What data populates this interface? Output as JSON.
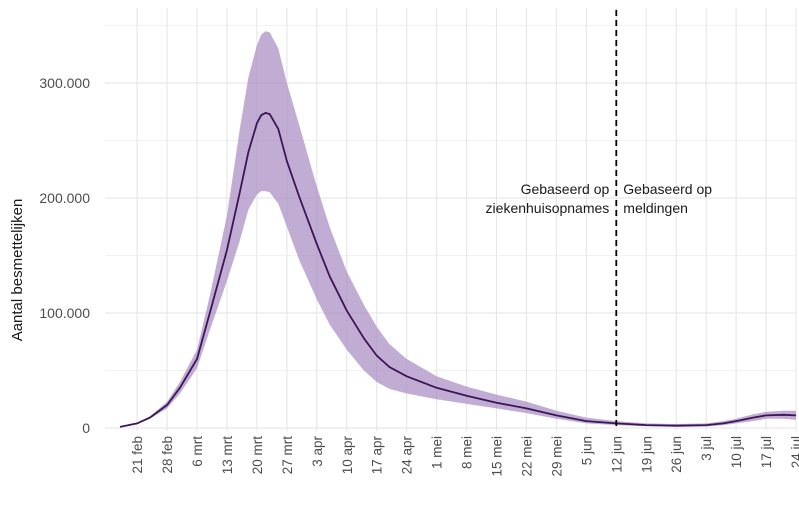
{
  "chart_data": {
    "type": "area",
    "title": "",
    "xlabel": "",
    "ylabel": "Aantal besmettelijken",
    "ylim": [
      0,
      350000
    ],
    "yticks": [
      0,
      100000,
      200000,
      300000
    ],
    "ytick_labels": [
      "0",
      "100.000",
      "200.000",
      "300.000"
    ],
    "grid": true,
    "x_start": "2020-02-17",
    "xlim": [
      "2020-02-17",
      "2020-07-24"
    ],
    "xticks": [
      "2020-02-21",
      "2020-02-28",
      "2020-03-06",
      "2020-03-13",
      "2020-03-20",
      "2020-03-27",
      "2020-04-03",
      "2020-04-10",
      "2020-04-17",
      "2020-04-24",
      "2020-05-01",
      "2020-05-08",
      "2020-05-15",
      "2020-05-22",
      "2020-05-29",
      "2020-06-05",
      "2020-06-12",
      "2020-06-19",
      "2020-06-26",
      "2020-07-03",
      "2020-07-10",
      "2020-07-17",
      "2020-07-24"
    ],
    "xtick_labels": [
      "21 feb",
      "28 feb",
      "6 mrt",
      "13 mrt",
      "20 mrt",
      "27 mrt",
      "3 apr",
      "10 apr",
      "17 apr",
      "24 apr",
      "1 mei",
      "8 mei",
      "15 mei",
      "22 mei",
      "29 mei",
      "5 jun",
      "12 jun",
      "19 jun",
      "26 jun",
      "3 jul",
      "10 jul",
      "17 jul",
      "24 jul"
    ],
    "series": [
      {
        "color": "#3b1556",
        "band_color": "#a98ec4",
        "x": [
          "2020-02-17",
          "2020-02-21",
          "2020-02-24",
          "2020-02-28",
          "2020-03-02",
          "2020-03-06",
          "2020-03-09",
          "2020-03-13",
          "2020-03-16",
          "2020-03-18",
          "2020-03-20",
          "2020-03-21",
          "2020-03-22",
          "2020-03-23",
          "2020-03-25",
          "2020-03-27",
          "2020-03-30",
          "2020-04-03",
          "2020-04-06",
          "2020-04-10",
          "2020-04-14",
          "2020-04-17",
          "2020-04-20",
          "2020-04-24",
          "2020-05-01",
          "2020-05-08",
          "2020-05-15",
          "2020-05-22",
          "2020-05-29",
          "2020-06-05",
          "2020-06-12",
          "2020-06-19",
          "2020-06-26",
          "2020-07-03",
          "2020-07-07",
          "2020-07-10",
          "2020-07-14",
          "2020-07-17",
          "2020-07-21",
          "2020-07-24"
        ],
        "values": [
          1000,
          4000,
          9000,
          20000,
          35000,
          60000,
          100000,
          155000,
          205000,
          240000,
          265000,
          272000,
          274000,
          273000,
          260000,
          232000,
          200000,
          160000,
          132000,
          102000,
          78000,
          63000,
          53000,
          45000,
          35000,
          28000,
          22000,
          17000,
          11000,
          6000,
          4000,
          2500,
          2000,
          2500,
          4000,
          6000,
          9000,
          11000,
          11500,
          11000
        ],
        "lower": [
          800,
          3500,
          8000,
          17000,
          30000,
          52000,
          85000,
          128000,
          163000,
          190000,
          203000,
          206000,
          206000,
          205000,
          195000,
          175000,
          145000,
          112000,
          90000,
          68000,
          50000,
          40000,
          34000,
          30000,
          25000,
          21000,
          17000,
          13000,
          8000,
          4000,
          2500,
          1500,
          1000,
          1200,
          2500,
          4000,
          6000,
          8000,
          8000,
          7000
        ],
        "upper": [
          1200,
          4500,
          10000,
          23000,
          40000,
          68000,
          115000,
          185000,
          260000,
          305000,
          333000,
          342000,
          345000,
          344000,
          330000,
          300000,
          262000,
          210000,
          175000,
          136000,
          107000,
          88000,
          73000,
          60000,
          45000,
          36000,
          29000,
          23000,
          15000,
          9000,
          6000,
          4000,
          3500,
          4000,
          6000,
          8000,
          12000,
          14000,
          15000,
          15000
        ]
      }
    ],
    "vline": {
      "x": "2020-06-12",
      "style": "dashed",
      "color": "#000000"
    },
    "annotations": [
      {
        "text": [
          "Gebaseerd op",
          "ziekenhuisopnames"
        ],
        "side": "left"
      },
      {
        "text": [
          "Gebaseerd op",
          "meldingen"
        ],
        "side": "right"
      }
    ]
  }
}
